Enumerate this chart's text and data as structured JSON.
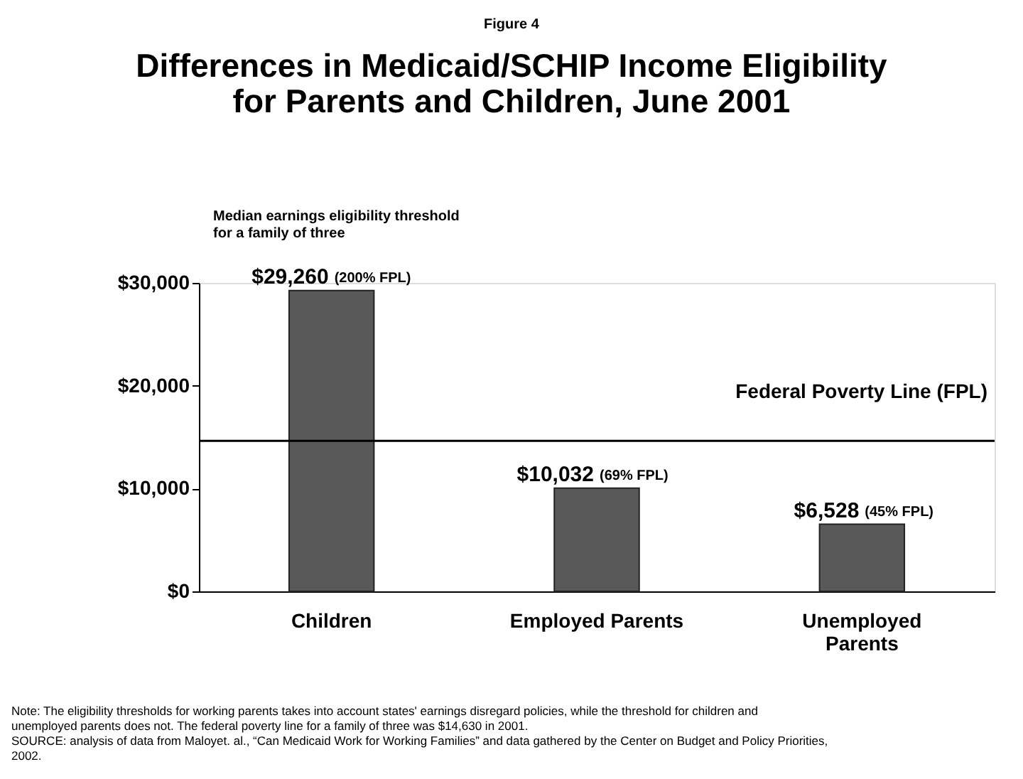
{
  "chart_data": {
    "type": "bar",
    "title": "Differences in Medicaid/SCHIP Income Eligibility for Parents and Children, June 2001",
    "ylabel": "Median earnings eligibility threshold for a family of three",
    "categories": [
      "Children",
      "Employed Parents",
      "Unemployed Parents"
    ],
    "values": [
      29260,
      10032,
      6528
    ],
    "value_labels": [
      "$29,260",
      "$10,032",
      "$6,528"
    ],
    "color": "#595959",
    "ylim": [
      0,
      30000
    ],
    "yticks": [
      {
        "value": 0,
        "label": "$0"
      },
      {
        "value": 10000,
        "label": "$10,000"
      },
      {
        "value": 20000,
        "label": "$20,000"
      },
      {
        "value": 30000,
        "label": "$30,000"
      }
    ],
    "grid": false,
    "ref_lines": [
      {
        "axis": "y",
        "value": 14630,
        "label": "Federal Poverty Line (FPL)"
      }
    ],
    "annotations": [
      "Figure 4",
      {
        "text": "(200% FPL)",
        "x": "Children",
        "y": 29260
      },
      {
        "text": "(69% FPL)",
        "x": "Employed Parents",
        "y": 10032
      },
      {
        "text": "(45% FPL)",
        "x": "Unemployed Parents",
        "y": 6528
      },
      "Note: The eligibility thresholds for working parents takes into account states' earnings disregard policies, while the threshold for children and unemployed parents does not.  The federal poverty line for a family of three was $14,630 in 2001.",
      "SOURCE: analysis of data from Maloyet. al., “Can Medicaid Work for Working Families” and data gathered by the Center on Budget and Policy Priorities, 2002."
    ]
  }
}
